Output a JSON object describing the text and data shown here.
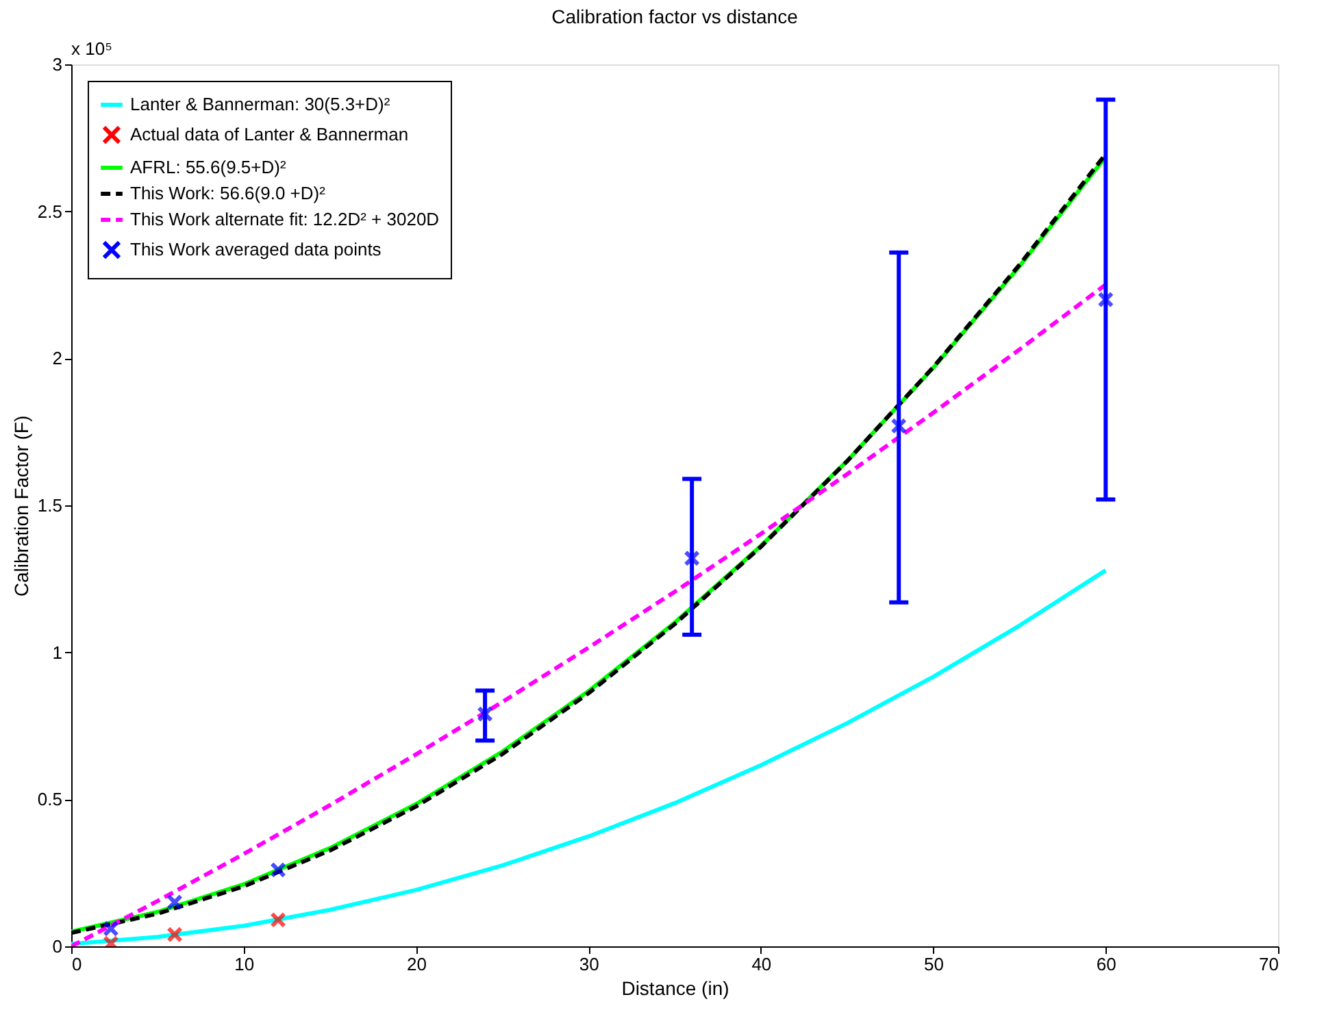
{
  "chart_data": {
    "type": "line",
    "title": "Calibration factor vs distance",
    "xlabel": "Distance (in)",
    "ylabel": "Calibration Factor (F)",
    "annotations": [
      "x 10⁵"
    ],
    "xlim": [
      0,
      70
    ],
    "xticks": [
      0,
      10,
      20,
      30,
      40,
      50,
      60,
      70
    ],
    "ylim": [
      0,
      3
    ],
    "yticks": [
      0,
      0.5,
      1,
      1.5,
      2,
      2.5,
      3
    ],
    "grid": false,
    "legend": "top left",
    "series": [
      {
        "name": "Lanter & Bannerman: 30(5.3+D)²",
        "type": "line",
        "line_style": "solid",
        "color": "#00ffff",
        "x": [
          0,
          5,
          10,
          15,
          20,
          25,
          30,
          35,
          40,
          45,
          50,
          55,
          60
        ],
        "values": [
          0.008,
          0.032,
          0.07,
          0.124,
          0.192,
          0.275,
          0.374,
          0.487,
          0.616,
          0.759,
          0.917,
          1.091,
          1.279
        ]
      },
      {
        "name": "Actual data of Lanter & Bannerman",
        "type": "scatter",
        "marker": "cross",
        "color": "#ff0000",
        "x": [
          2.3,
          6,
          12
        ],
        "values": [
          0.01,
          0.04,
          0.09
        ]
      },
      {
        "name": "AFRL: 55.6(9.5+D)²",
        "type": "line",
        "line_style": "solid",
        "color": "#00ff00",
        "x": [
          0,
          5,
          10,
          15,
          20,
          25,
          30,
          35,
          40,
          45,
          50,
          55,
          60
        ],
        "values": [
          0.05,
          0.117,
          0.211,
          0.334,
          0.484,
          0.662,
          0.868,
          1.101,
          1.362,
          1.651,
          1.968,
          2.313,
          2.686
        ]
      },
      {
        "name": "This Work: 56.6(9.0 +D)²",
        "type": "line",
        "line_style": "dashed",
        "color": "#000000",
        "x": [
          0,
          5,
          10,
          15,
          20,
          25,
          30,
          35,
          40,
          45,
          50,
          55,
          60
        ],
        "values": [
          0.046,
          0.111,
          0.204,
          0.326,
          0.476,
          0.654,
          0.861,
          1.096,
          1.359,
          1.65,
          1.97,
          2.318,
          2.695
        ]
      },
      {
        "name": "This Work alternate fit: 12.2D² + 3020D",
        "type": "line",
        "line_style": "dashed",
        "color": "#ff00ff",
        "x": [
          0,
          5,
          10,
          15,
          20,
          25,
          30,
          35,
          40,
          45,
          50,
          55,
          60
        ],
        "values": [
          0.0,
          0.154,
          0.314,
          0.48,
          0.653,
          0.831,
          1.016,
          1.206,
          1.403,
          1.606,
          1.815,
          2.03,
          2.251
        ]
      },
      {
        "name": "This Work averaged data points",
        "type": "scatter",
        "marker": "cross",
        "color": "#0000ff",
        "x": [
          2.3,
          6,
          12,
          24,
          36,
          48,
          60
        ],
        "values": [
          0.06,
          0.15,
          0.26,
          0.79,
          1.32,
          1.77,
          2.2
        ],
        "errors": [
          null,
          null,
          null,
          [
            0.7,
            0.87
          ],
          [
            1.06,
            1.59
          ],
          [
            1.17,
            2.36
          ],
          [
            1.52,
            2.88
          ]
        ]
      }
    ]
  }
}
